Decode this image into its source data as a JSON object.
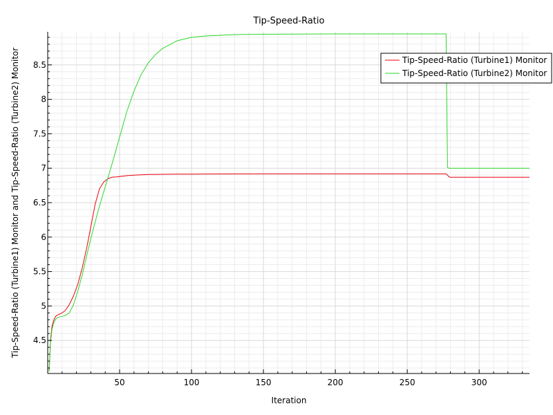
{
  "chart_data": {
    "type": "line",
    "title": "Tip-Speed-Ratio",
    "xlabel": "Iteration",
    "ylabel": "Tip-Speed-Ratio (Turbine1) Monitor and Tip-Speed-Ratio (Turbine2) Monitor",
    "xlim": [
      0,
      335
    ],
    "ylim": [
      4.02,
      8.98
    ],
    "xticks": [
      50,
      100,
      150,
      200,
      250,
      300
    ],
    "yticks": [
      4.5,
      5,
      5.5,
      6,
      6.5,
      7,
      7.5,
      8,
      8.5
    ],
    "grid": true,
    "legend_position": "top-right",
    "series": [
      {
        "name": "Tip-Speed-Ratio (Turbine1) Monitor",
        "color": "#e8000b",
        "x": [
          1,
          2,
          3,
          4,
          5,
          6,
          8,
          10,
          12,
          15,
          18,
          21,
          24,
          27,
          30,
          33,
          36,
          39,
          42,
          45,
          48,
          52,
          56,
          60,
          65,
          70,
          80,
          90,
          100,
          120,
          150,
          200,
          250,
          277,
          278,
          279,
          280,
          300,
          335
        ],
        "y": [
          4.05,
          4.52,
          4.7,
          4.78,
          4.83,
          4.86,
          4.88,
          4.9,
          4.93,
          5.02,
          5.15,
          5.32,
          5.55,
          5.83,
          6.15,
          6.48,
          6.7,
          6.8,
          6.85,
          6.87,
          6.875,
          6.885,
          6.895,
          6.9,
          6.905,
          6.91,
          6.912,
          6.915,
          6.915,
          6.917,
          6.918,
          6.918,
          6.918,
          6.918,
          6.9,
          6.875,
          6.868,
          6.868,
          6.868
        ]
      },
      {
        "name": "Tip-Speed-Ratio (Turbine2) Monitor",
        "color": "#2bd62b",
        "x": [
          1,
          2,
          3,
          4,
          5,
          6,
          8,
          10,
          12,
          15,
          18,
          21,
          24,
          27,
          30,
          33,
          36,
          40,
          45,
          50,
          55,
          60,
          65,
          70,
          75,
          80,
          90,
          100,
          110,
          130,
          150,
          200,
          250,
          277,
          278,
          279,
          300,
          335
        ],
        "y": [
          4.05,
          4.48,
          4.66,
          4.74,
          4.79,
          4.82,
          4.84,
          4.85,
          4.86,
          4.9,
          5.02,
          5.22,
          5.45,
          5.72,
          5.98,
          6.22,
          6.45,
          6.73,
          7.08,
          7.45,
          7.82,
          8.12,
          8.36,
          8.53,
          8.65,
          8.74,
          8.85,
          8.9,
          8.92,
          8.94,
          8.945,
          8.95,
          8.95,
          8.95,
          7.01,
          7.0,
          7.0,
          7.0
        ]
      }
    ]
  }
}
